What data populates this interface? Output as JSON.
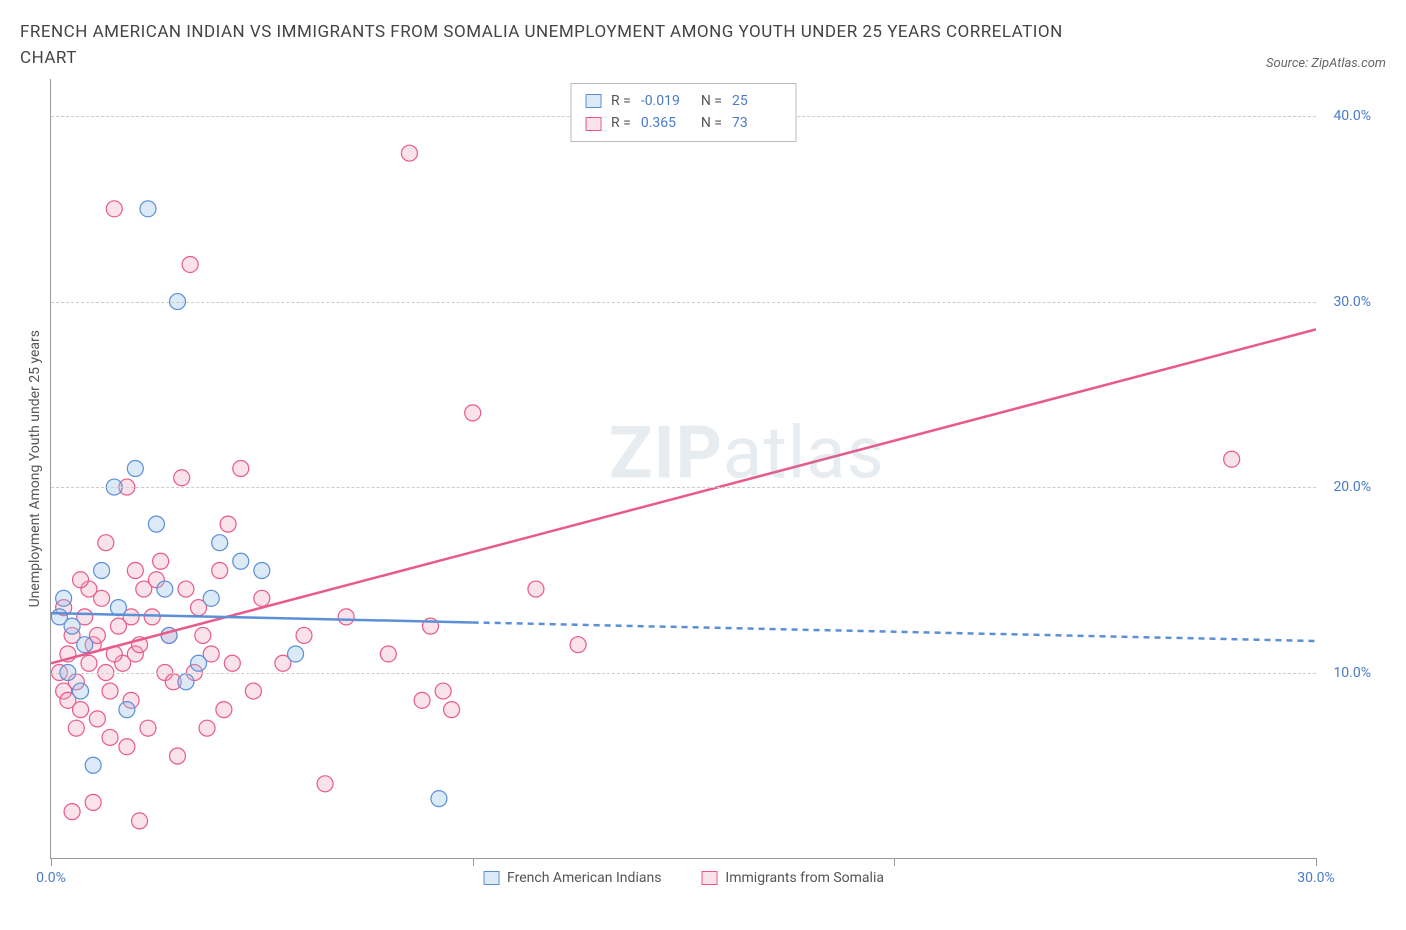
{
  "title": "FRENCH AMERICAN INDIAN VS IMMIGRANTS FROM SOMALIA UNEMPLOYMENT AMONG YOUTH UNDER 25 YEARS CORRELATION CHART",
  "source": "Source: ZipAtlas.com",
  "ylabel": "Unemployment Among Youth under 25 years",
  "watermark_bold": "ZIP",
  "watermark_rest": "atlas",
  "xlim": [
    0,
    30
  ],
  "ylim": [
    0,
    42
  ],
  "xticks": [
    0,
    10,
    20,
    30
  ],
  "xtick_labels": [
    "0.0%",
    "",
    "",
    "30.0%"
  ],
  "yticks": [
    10,
    20,
    30,
    40
  ],
  "ytick_labels": [
    "10.0%",
    "20.0%",
    "30.0%",
    "40.0%"
  ],
  "series_a": {
    "name": "French American Indians",
    "stroke": "#5b8fd6",
    "fill": "rgba(154,192,232,0.35)",
    "border": "#5b8fd6",
    "r_label": "R =",
    "r_value": "-0.019",
    "n_label": "N =",
    "n_value": "25",
    "trend_solid": [
      [
        0,
        13.2
      ],
      [
        10,
        12.7
      ]
    ],
    "trend_dash": [
      [
        10,
        12.7
      ],
      [
        30,
        11.7
      ]
    ],
    "points": [
      [
        0.2,
        13.0
      ],
      [
        0.3,
        14.0
      ],
      [
        0.5,
        12.5
      ],
      [
        0.7,
        9.0
      ],
      [
        1.5,
        20.0
      ],
      [
        1.8,
        8.0
      ],
      [
        2.0,
        21.0
      ],
      [
        2.3,
        35.0
      ],
      [
        2.5,
        18.0
      ],
      [
        3.0,
        30.0
      ],
      [
        3.5,
        10.5
      ],
      [
        3.8,
        14.0
      ],
      [
        4.5,
        16.0
      ],
      [
        5.0,
        15.5
      ],
      [
        5.8,
        11.0
      ],
      [
        1.0,
        5.0
      ],
      [
        2.8,
        12.0
      ],
      [
        4.0,
        17.0
      ],
      [
        9.2,
        3.2
      ],
      [
        1.2,
        15.5
      ],
      [
        3.2,
        9.5
      ],
      [
        0.8,
        11.5
      ],
      [
        1.6,
        13.5
      ],
      [
        2.7,
        14.5
      ],
      [
        0.4,
        10.0
      ]
    ]
  },
  "series_b": {
    "name": "Immigrants from Somalia",
    "stroke": "#e85a8a",
    "fill": "rgba(240,160,190,0.3)",
    "border": "#e85a8a",
    "r_label": "R =",
    "r_value": "0.365",
    "n_label": "N =",
    "n_value": "73",
    "trend_solid": [
      [
        0,
        10.5
      ],
      [
        30,
        28.5
      ]
    ],
    "points": [
      [
        0.2,
        10.0
      ],
      [
        0.3,
        9.0
      ],
      [
        0.4,
        11.0
      ],
      [
        0.5,
        12.0
      ],
      [
        0.6,
        9.5
      ],
      [
        0.7,
        8.0
      ],
      [
        0.8,
        13.0
      ],
      [
        0.9,
        10.5
      ],
      [
        1.0,
        11.5
      ],
      [
        1.1,
        7.5
      ],
      [
        1.2,
        14.0
      ],
      [
        1.3,
        10.0
      ],
      [
        1.4,
        9.0
      ],
      [
        1.5,
        35.0
      ],
      [
        1.6,
        12.5
      ],
      [
        1.8,
        20.0
      ],
      [
        1.9,
        8.5
      ],
      [
        2.0,
        11.0
      ],
      [
        2.1,
        2.0
      ],
      [
        2.2,
        14.5
      ],
      [
        2.3,
        7.0
      ],
      [
        2.5,
        15.0
      ],
      [
        2.7,
        10.0
      ],
      [
        2.8,
        12.0
      ],
      [
        3.0,
        5.5
      ],
      [
        3.1,
        20.5
      ],
      [
        3.3,
        32.0
      ],
      [
        3.5,
        13.5
      ],
      [
        3.7,
        7.0
      ],
      [
        3.8,
        11.0
      ],
      [
        4.0,
        15.5
      ],
      [
        4.2,
        18.0
      ],
      [
        4.5,
        21.0
      ],
      [
        4.8,
        9.0
      ],
      [
        5.0,
        14.0
      ],
      [
        6.0,
        12.0
      ],
      [
        6.5,
        4.0
      ],
      [
        8.0,
        11.0
      ],
      [
        8.5,
        38.0
      ],
      [
        8.8,
        8.5
      ],
      [
        9.0,
        12.5
      ],
      [
        9.3,
        9.0
      ],
      [
        9.5,
        8.0
      ],
      [
        10.0,
        24.0
      ],
      [
        11.5,
        14.5
      ],
      [
        12.5,
        11.5
      ],
      [
        28.0,
        21.5
      ],
      [
        0.5,
        2.5
      ],
      [
        1.0,
        3.0
      ],
      [
        1.8,
        6.0
      ],
      [
        0.6,
        7.0
      ],
      [
        1.4,
        6.5
      ],
      [
        2.0,
        15.5
      ],
      [
        0.3,
        13.5
      ],
      [
        1.1,
        12.0
      ],
      [
        1.7,
        10.5
      ],
      [
        2.4,
        13.0
      ],
      [
        2.9,
        9.5
      ],
      [
        1.3,
        17.0
      ],
      [
        0.9,
        14.5
      ],
      [
        3.4,
        10.0
      ],
      [
        4.1,
        8.0
      ],
      [
        5.5,
        10.5
      ],
      [
        0.7,
        15.0
      ],
      [
        1.5,
        11.0
      ],
      [
        2.6,
        16.0
      ],
      [
        3.2,
        14.5
      ],
      [
        0.4,
        8.5
      ],
      [
        1.9,
        13.0
      ],
      [
        2.1,
        11.5
      ],
      [
        3.6,
        12.0
      ],
      [
        4.3,
        10.5
      ],
      [
        7.0,
        13.0
      ]
    ]
  },
  "plot_bg": "#ffffff",
  "grid_color": "#cccccc",
  "marker_radius": 8
}
